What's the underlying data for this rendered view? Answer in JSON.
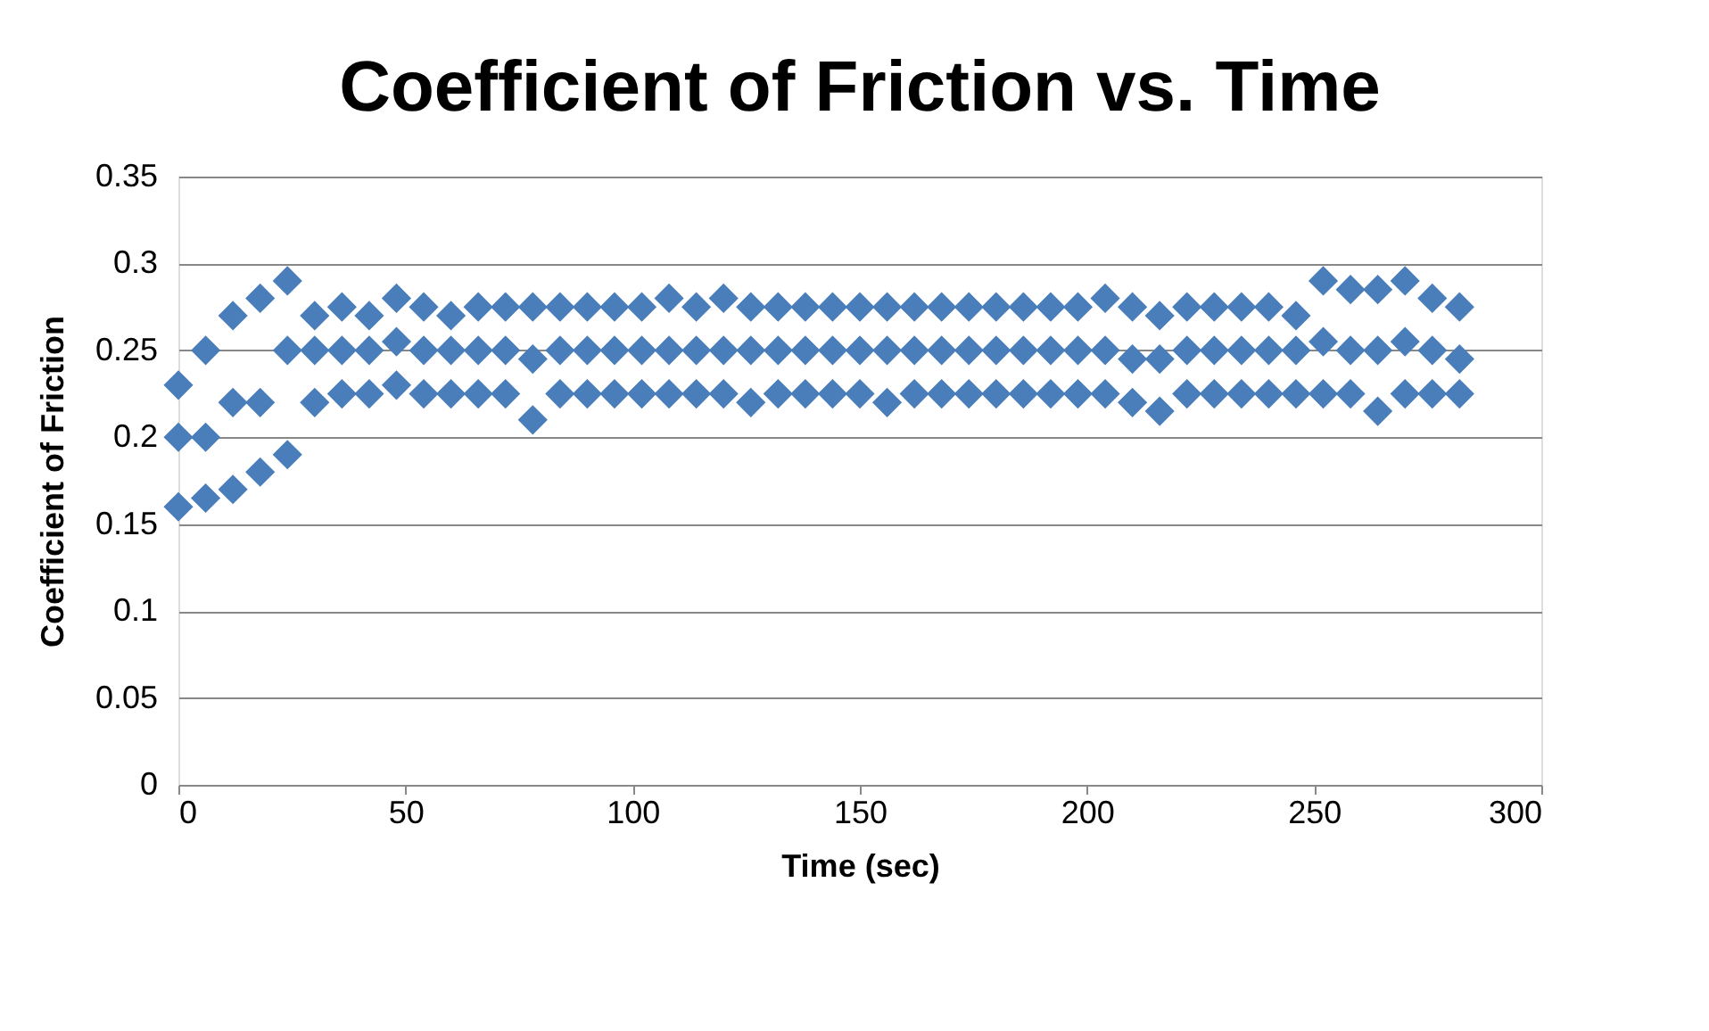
{
  "chart_data": {
    "type": "scatter",
    "title": "Coefficient of Friction vs. Time",
    "xlabel": "Time (sec)",
    "ylabel": "Coefficient of Friction",
    "x": [
      0,
      0,
      0,
      6,
      6,
      6,
      12,
      12,
      12,
      18,
      18,
      18,
      24,
      24,
      24,
      30,
      30,
      30,
      36,
      36,
      36,
      42,
      42,
      42,
      48,
      48,
      48,
      54,
      54,
      54,
      60,
      60,
      60,
      66,
      66,
      66,
      72,
      72,
      72,
      78,
      78,
      78,
      84,
      84,
      84,
      90,
      90,
      90,
      96,
      96,
      96,
      102,
      102,
      102,
      108,
      108,
      108,
      114,
      114,
      114,
      120,
      120,
      120,
      126,
      126,
      126,
      132,
      132,
      132,
      138,
      138,
      138,
      144,
      144,
      144,
      150,
      150,
      150,
      156,
      156,
      156,
      162,
      162,
      162,
      168,
      168,
      168,
      174,
      174,
      174,
      180,
      180,
      180,
      186,
      186,
      186,
      192,
      192,
      192,
      198,
      198,
      198,
      204,
      204,
      204,
      210,
      210,
      210,
      216,
      216,
      216,
      222,
      222,
      222,
      228,
      228,
      228,
      234,
      234,
      234,
      240,
      240,
      240,
      246,
      246,
      246,
      252,
      252,
      252,
      258,
      258,
      258,
      264,
      264,
      264,
      270,
      270,
      270,
      276,
      276,
      276,
      282,
      282,
      282
    ],
    "series": [
      {
        "color": "#4a7ebb",
        "values": [
          0.16,
          0.2,
          0.23,
          0.165,
          0.2,
          0.25,
          0.17,
          0.22,
          0.27,
          0.18,
          0.22,
          0.28,
          0.19,
          0.25,
          0.29,
          0.22,
          0.25,
          0.27,
          0.225,
          0.25,
          0.275,
          0.225,
          0.25,
          0.27,
          0.23,
          0.255,
          0.28,
          0.225,
          0.25,
          0.275,
          0.225,
          0.25,
          0.27,
          0.225,
          0.25,
          0.275,
          0.225,
          0.25,
          0.275,
          0.21,
          0.245,
          0.275,
          0.225,
          0.25,
          0.275,
          0.225,
          0.25,
          0.275,
          0.225,
          0.25,
          0.275,
          0.225,
          0.25,
          0.275,
          0.225,
          0.25,
          0.28,
          0.225,
          0.25,
          0.275,
          0.225,
          0.25,
          0.28,
          0.22,
          0.25,
          0.275,
          0.225,
          0.25,
          0.275,
          0.225,
          0.25,
          0.275,
          0.225,
          0.25,
          0.275,
          0.225,
          0.25,
          0.275,
          0.22,
          0.25,
          0.275,
          0.225,
          0.25,
          0.275,
          0.225,
          0.25,
          0.275,
          0.225,
          0.25,
          0.275,
          0.225,
          0.25,
          0.275,
          0.225,
          0.25,
          0.275,
          0.225,
          0.25,
          0.275,
          0.225,
          0.25,
          0.275,
          0.225,
          0.25,
          0.28,
          0.22,
          0.245,
          0.275,
          0.215,
          0.245,
          0.27,
          0.225,
          0.25,
          0.275,
          0.225,
          0.25,
          0.275,
          0.225,
          0.25,
          0.275,
          0.225,
          0.25,
          0.275,
          0.225,
          0.25,
          0.27,
          0.225,
          0.255,
          0.29,
          0.225,
          0.25,
          0.285,
          0.215,
          0.25,
          0.285,
          0.225,
          0.255,
          0.29,
          0.225,
          0.25,
          0.28,
          0.225,
          0.245,
          0.275
        ]
      }
    ],
    "xlim": [
      0,
      300
    ],
    "xticks": [
      0,
      50,
      100,
      150,
      200,
      250,
      300
    ],
    "ylim": [
      0,
      0.35
    ],
    "yticks": [
      0,
      0.05,
      0.1,
      0.15,
      0.2,
      0.25,
      0.3,
      0.35
    ],
    "grid": "y",
    "marker": "diamond"
  }
}
